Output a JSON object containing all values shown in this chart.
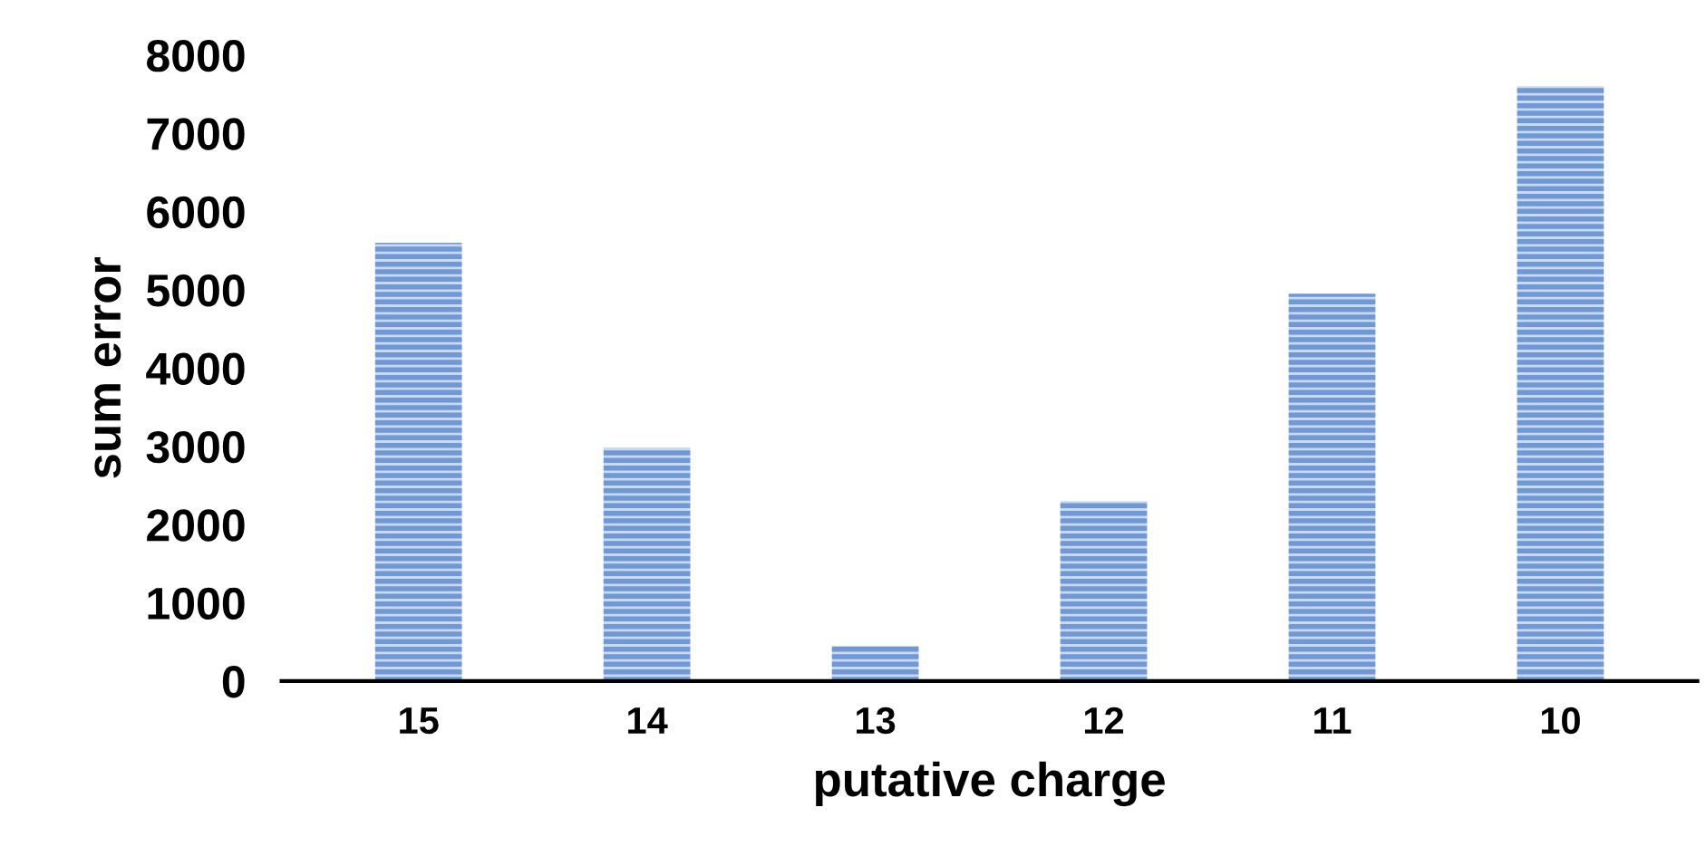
{
  "chart_data": {
    "type": "bar",
    "xlabel": "putative charge",
    "ylabel": "sum error",
    "categories": [
      "15",
      "14",
      "13",
      "12",
      "11",
      "10"
    ],
    "values": [
      5600,
      2980,
      450,
      2300,
      4950,
      7600
    ],
    "color": "#6f98d4",
    "ylim": [
      0,
      8000
    ],
    "yticks": [
      0,
      1000,
      2000,
      3000,
      4000,
      5000,
      6000,
      7000,
      8000
    ],
    "grid": false,
    "legend": false
  }
}
